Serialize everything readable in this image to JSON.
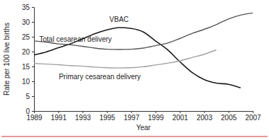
{
  "chart_data": {
    "type": "line",
    "x_label": "Year",
    "y_label": "Rate per 100 live births",
    "x": [
      1989,
      1990,
      1991,
      1992,
      1993,
      1994,
      1995,
      1996,
      1997,
      1998,
      1999,
      2000,
      2001,
      2002,
      2003,
      2004,
      2005,
      2006,
      2007
    ],
    "series": [
      {
        "name": "VBAC",
        "color": "#1a1a1a",
        "values": [
          18.9,
          19.9,
          21.3,
          22.6,
          24.3,
          26.0,
          27.3,
          28.1,
          27.8,
          26.6,
          23.6,
          20.6,
          16.6,
          13.0,
          10.6,
          9.4,
          9.0,
          7.8,
          null
        ]
      },
      {
        "name": "Total cesarean delivery",
        "color": "#555555",
        "values": [
          23.6,
          23.2,
          22.6,
          22.3,
          21.8,
          21.2,
          20.8,
          20.7,
          20.8,
          21.2,
          22.0,
          22.9,
          24.4,
          26.1,
          27.5,
          29.1,
          31.0,
          32.3,
          33.0
        ]
      },
      {
        "name": "Primary cesarean delivery",
        "color": "#a0a0a0",
        "values": [
          16.0,
          15.8,
          15.6,
          15.3,
          15.1,
          14.8,
          14.6,
          14.5,
          14.6,
          14.9,
          15.5,
          16.1,
          16.9,
          18.0,
          19.1,
          20.6,
          null,
          null,
          null
        ]
      }
    ],
    "xlim": [
      1989,
      2007
    ],
    "xticks": [
      1989,
      1991,
      1993,
      1995,
      1997,
      1999,
      2001,
      2003,
      2005,
      2007
    ],
    "ylim": [
      0,
      35
    ],
    "yticks": [
      0,
      5,
      10,
      15,
      20,
      25,
      30,
      35
    ],
    "grid": false
  }
}
